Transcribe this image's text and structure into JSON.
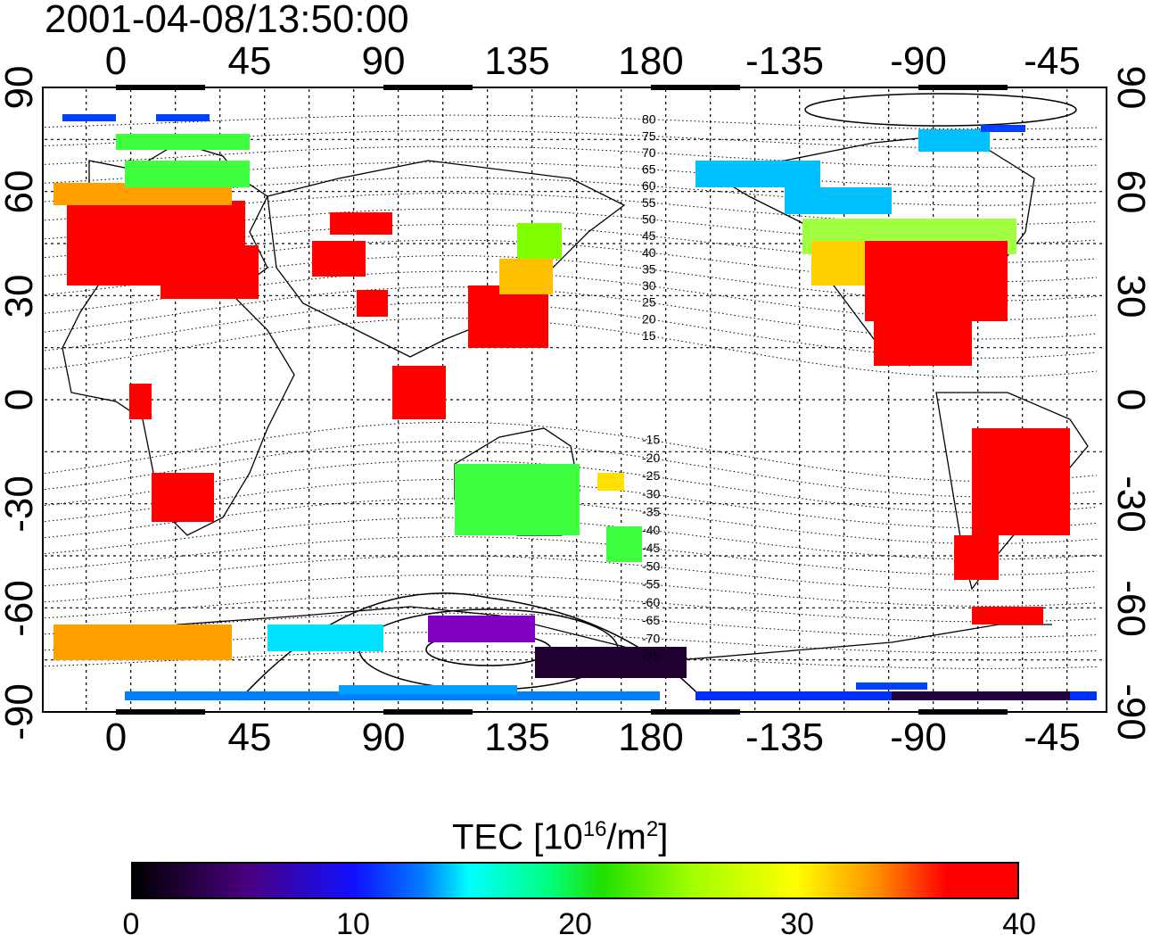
{
  "timestamp": "2001-04-08/13:50:00",
  "top_lon_labels": [
    "0",
    "45",
    "90",
    "135",
    "180",
    "-135",
    "-90",
    "-45"
  ],
  "bottom_lon_labels": [
    "0",
    "45",
    "90",
    "135",
    "180",
    "-135",
    "-90",
    "-45"
  ],
  "left_lat_labels": [
    "90",
    "60",
    "30",
    "0",
    "-30",
    "-60",
    "-90"
  ],
  "right_lat_labels": [
    "90",
    "60",
    "30",
    "0",
    "-30",
    "-60",
    "-90"
  ],
  "contour_labels": [
    "80",
    "75",
    "70",
    "65",
    "60",
    "55",
    "50",
    "45",
    "40",
    "35",
    "30",
    "25",
    "20",
    "15",
    "-15",
    "-20",
    "-25",
    "-30",
    "-35",
    "-40",
    "-45",
    "-50",
    "-55",
    "-60",
    "-65",
    "-70",
    "-75"
  ],
  "colorbar": {
    "title_main": "TEC  [10",
    "title_sup1": "16",
    "title_mid": "/m",
    "title_sup2": "2",
    "title_end": "]",
    "min": 0,
    "max": 40,
    "tick_labels": [
      "0",
      "10",
      "20",
      "30",
      "40"
    ],
    "colors": [
      "#000000",
      "#4a0080",
      "#1010ff",
      "#0080ff",
      "#00ffff",
      "#00ff80",
      "#20e000",
      "#a0ff00",
      "#ffff00",
      "#ff9000",
      "#ff0000"
    ]
  },
  "colors": {
    "high_tec": "#ff0000",
    "mid_tec": "#ffa000",
    "low_tec": "#00ff40",
    "very_low_tec": "#0040ff"
  }
}
